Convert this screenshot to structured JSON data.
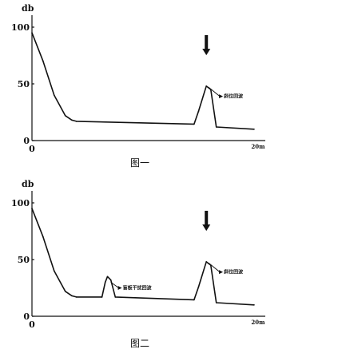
{
  "chart_data": [
    {
      "type": "line",
      "caption": "图一",
      "ylabel": "db",
      "y_ticks": [
        "100",
        "50",
        "0"
      ],
      "x_ticks": [
        "0",
        "20m"
      ],
      "xlim": [
        0,
        20
      ],
      "ylim": [
        0,
        100
      ],
      "series": [
        {
          "x": [
            0,
            1.0,
            2.0,
            3.0,
            3.6,
            4.0,
            14.6,
            15.0,
            15.7,
            16.1,
            16.6,
            20.0
          ],
          "y": [
            95,
            70,
            40,
            22,
            18,
            17,
            14.5,
            26,
            48,
            45,
            12,
            10
          ]
        }
      ],
      "annotations": [
        {
          "text": "斜位回波",
          "x": 15.9,
          "y": 47,
          "label_x": 17.2,
          "label_y": 39
        }
      ],
      "arrows": [
        {
          "x": 15.7,
          "y_top": 93,
          "y_bottom": 76
        }
      ]
    },
    {
      "type": "line",
      "caption": "图二",
      "ylabel": "db",
      "y_ticks": [
        "100",
        "50",
        "0"
      ],
      "x_ticks": [
        "0",
        "20m"
      ],
      "xlim": [
        0,
        20
      ],
      "ylim": [
        0,
        100
      ],
      "series": [
        {
          "x": [
            0,
            1.0,
            2.0,
            3.0,
            3.6,
            4.0,
            6.3,
            6.6,
            6.8,
            7.1,
            7.5,
            14.6,
            15.0,
            15.7,
            16.1,
            16.6,
            20.0
          ],
          "y": [
            95,
            70,
            40,
            22,
            18,
            17,
            17,
            30,
            35,
            32,
            17,
            14.5,
            26,
            48,
            45,
            12,
            10
          ]
        }
      ],
      "annotations": [
        {
          "text": "盲板干扰回波",
          "x": 7.1,
          "y": 30,
          "label_x": 8.1,
          "label_y": 25
        },
        {
          "text": "斜位回波",
          "x": 15.9,
          "y": 47,
          "label_x": 17.2,
          "label_y": 39
        }
      ],
      "arrows": [
        {
          "x": 15.7,
          "y_top": 93,
          "y_bottom": 76
        }
      ]
    }
  ]
}
